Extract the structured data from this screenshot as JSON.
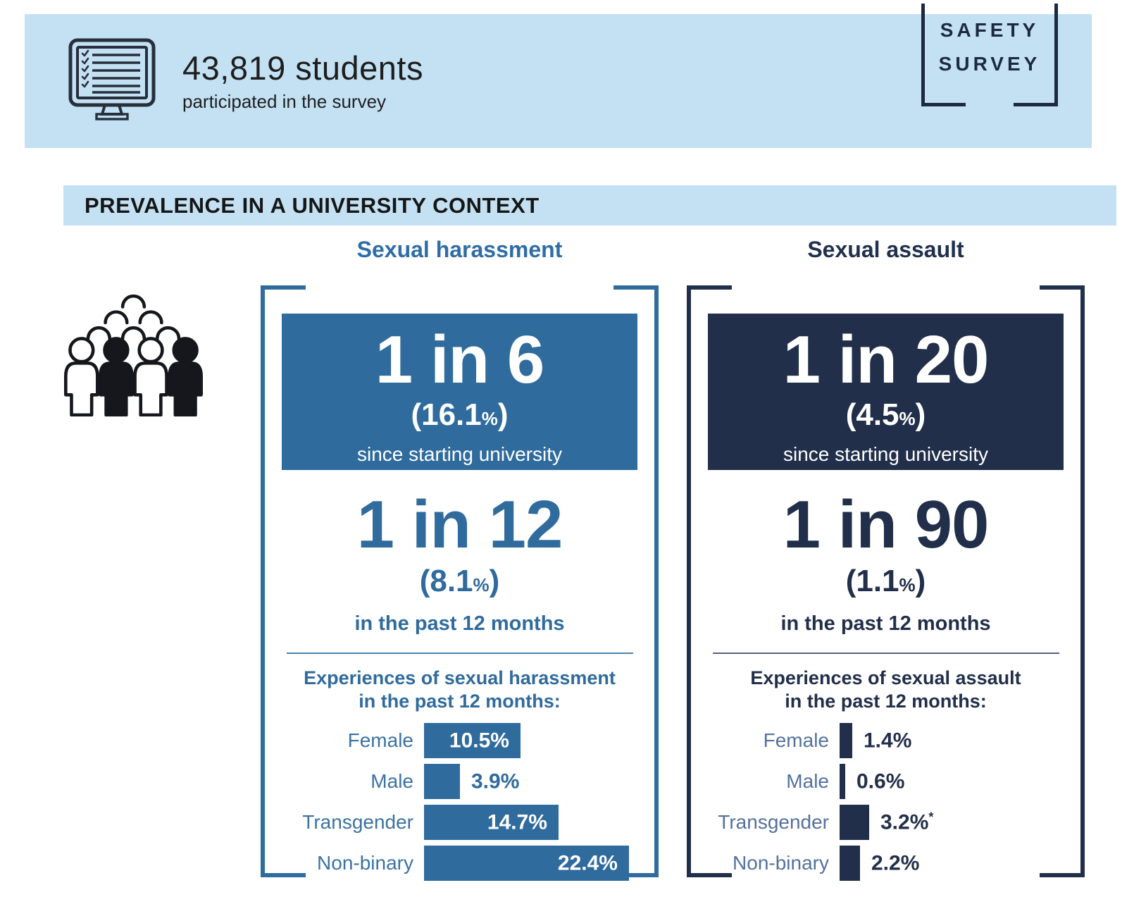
{
  "page": {
    "background": "#ffffff",
    "light_blue": "#c3e1f3"
  },
  "top_banner": {
    "icon": "checklist-monitor-icon",
    "headline": "43,819 students",
    "subline": "participated in the survey",
    "bg_color": "#c3e1f3"
  },
  "logo": {
    "line1": "SAFETY",
    "line2": "SURVEY",
    "color": "#1d2942"
  },
  "section": {
    "title": "PREVALENCE IN A UNIVERSITY CONTEXT",
    "bg_color": "#c3e1f3"
  },
  "icons": {
    "survey_monitor": "checklist-monitor-icon",
    "crowd": "crowd-people-icon"
  },
  "chart_data": [
    {
      "type": "bar",
      "orientation": "horizontal",
      "title": "Sexual harassment",
      "accent_color": "#306b9d",
      "stat_primary": {
        "headline": "1 in 6",
        "open": "(",
        "pct": "16.1",
        "sym": "%",
        "close": ")",
        "caption": "since starting university"
      },
      "stat_secondary": {
        "headline": "1 in 12",
        "open": "(",
        "pct": "8.1",
        "sym": "%",
        "close": ")",
        "caption": "in the past 12 months"
      },
      "subtitle_line1": "Experiences of sexual harassment",
      "subtitle_line2": "in the past 12 months:",
      "categories": [
        "Female",
        "Male",
        "Transgender",
        "Non-binary"
      ],
      "values": [
        10.5,
        3.9,
        14.7,
        22.4
      ],
      "xlim": [
        0,
        25
      ],
      "bars": [
        {
          "label": "Female",
          "value": 10.5,
          "display": "10.5%"
        },
        {
          "label": "Male",
          "value": 3.9,
          "display": "3.9%"
        },
        {
          "label": "Transgender",
          "value": 14.7,
          "display": "14.7%"
        },
        {
          "label": "Non-binary",
          "value": 22.4,
          "display": "22.4%"
        }
      ]
    },
    {
      "type": "bar",
      "orientation": "horizontal",
      "title": "Sexual assault",
      "accent_color": "#222f4a",
      "stat_primary": {
        "headline": "1 in 20",
        "open": "(",
        "pct": "4.5",
        "sym": "%",
        "close": ")",
        "caption": "since starting university"
      },
      "stat_secondary": {
        "headline": "1 in 90",
        "open": "(",
        "pct": "1.1",
        "sym": "%",
        "close": ")",
        "caption": "in the past 12 months"
      },
      "subtitle_line1": "Experiences of sexual assault",
      "subtitle_line2": "in the past 12 months:",
      "categories": [
        "Female",
        "Male",
        "Transgender",
        "Non-binary"
      ],
      "values": [
        1.4,
        0.6,
        3.2,
        2.2
      ],
      "xlim": [
        0,
        25
      ],
      "bars": [
        {
          "label": "Female",
          "value": 1.4,
          "display": "1.4%"
        },
        {
          "label": "Male",
          "value": 0.6,
          "display": "0.6%"
        },
        {
          "label": "Transgender",
          "value": 3.2,
          "display": "3.2%",
          "sup": "*"
        },
        {
          "label": "Non-binary",
          "value": 2.2,
          "display": "2.2%"
        }
      ]
    }
  ]
}
